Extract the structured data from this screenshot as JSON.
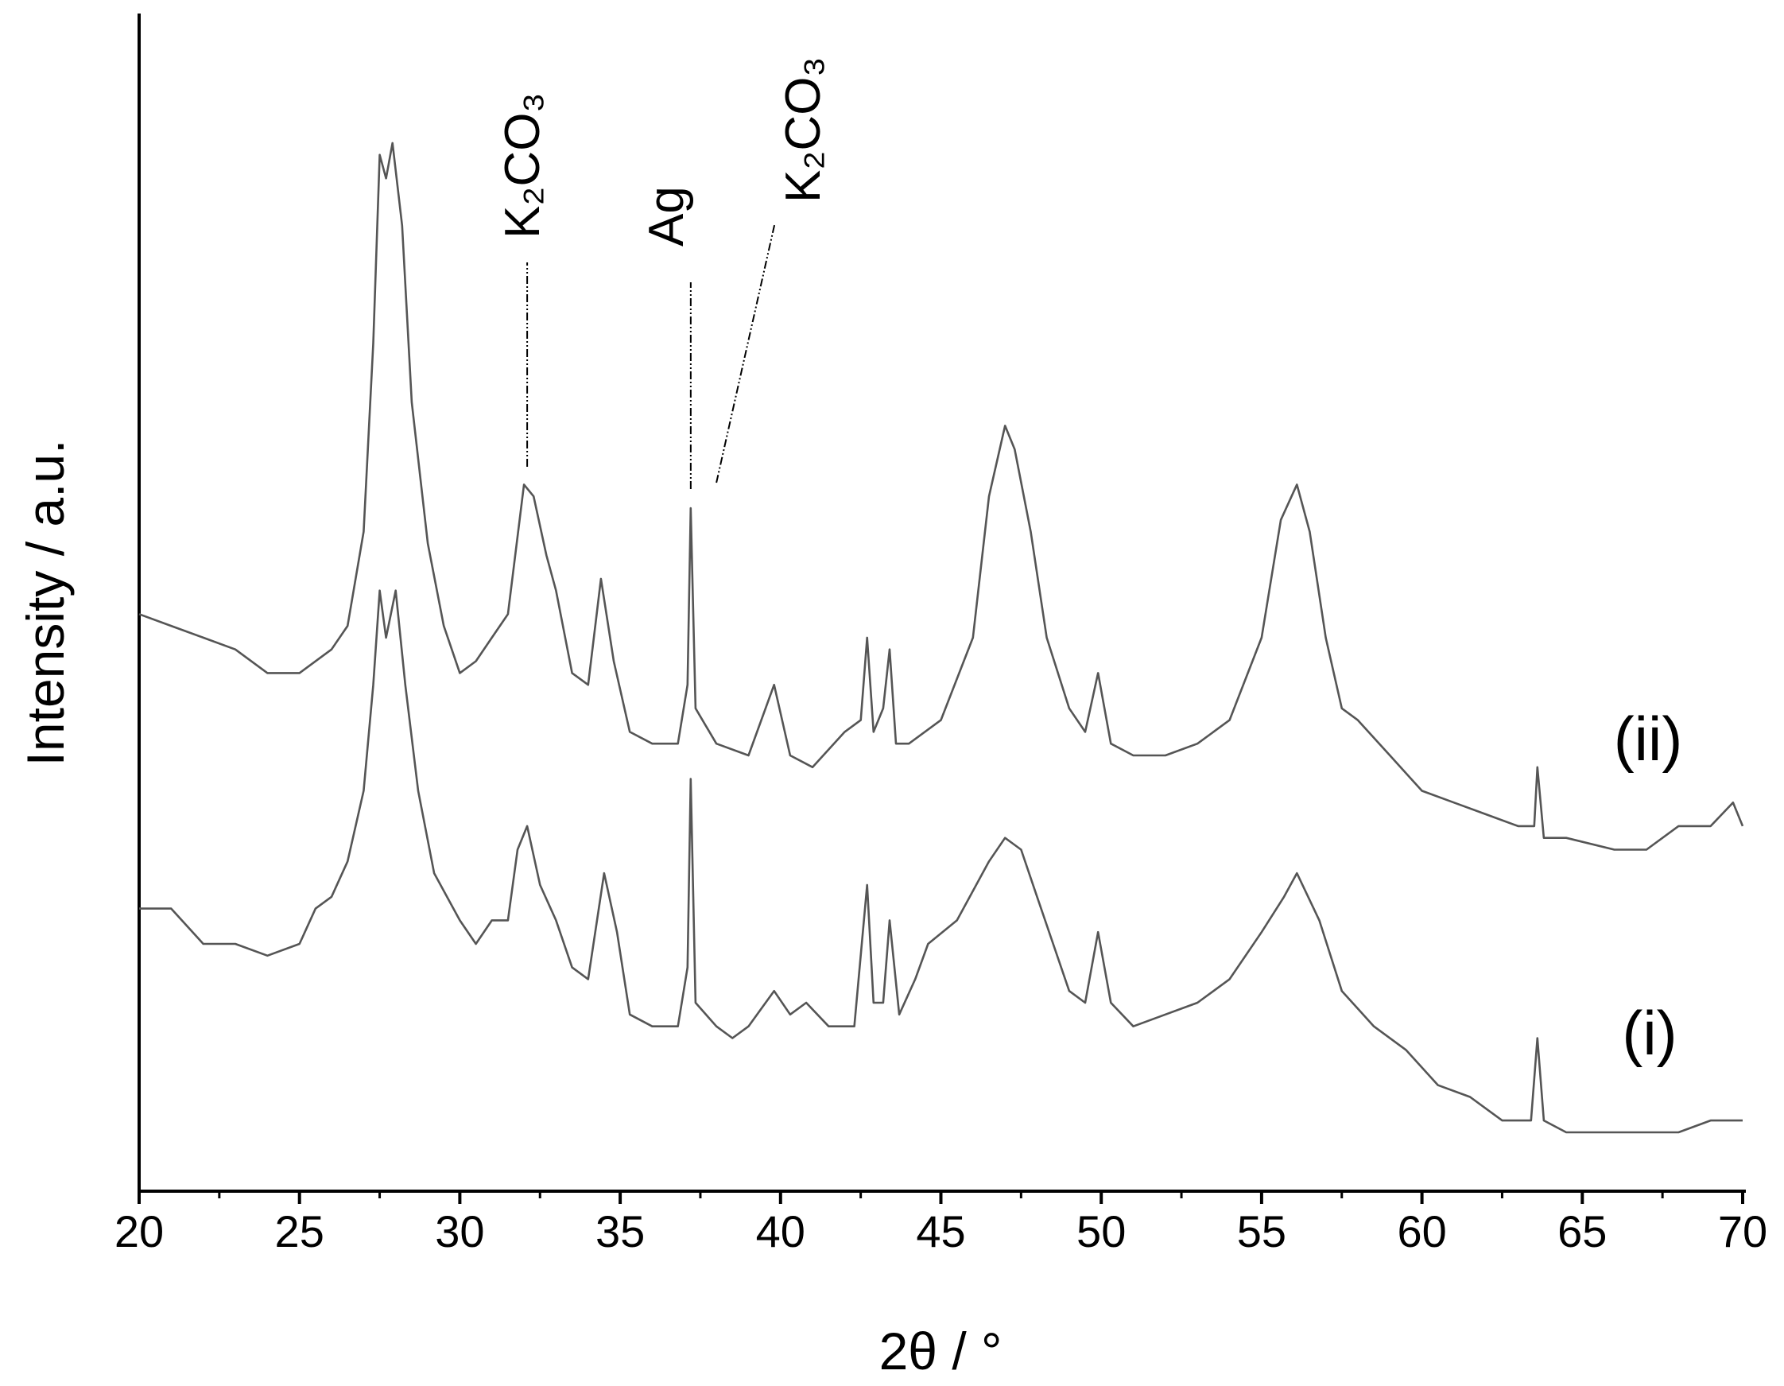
{
  "chart_data": {
    "type": "line",
    "xlabel": "2θ / °",
    "ylabel": "Intensity / a.u.",
    "xlim": [
      20,
      70
    ],
    "xticks": [
      20,
      25,
      30,
      35,
      40,
      45,
      50,
      55,
      60,
      65,
      70
    ],
    "xminorticks": [
      22.5,
      27.5,
      32.5,
      37.5,
      42.5,
      47.5,
      52.5,
      57.5,
      62.5,
      67.5
    ],
    "ylim": [
      0,
      100
    ],
    "series": [
      {
        "name": "(ii)",
        "color": "#555555",
        "x": [
          20,
          21,
          22,
          23,
          24,
          25,
          26,
          26.5,
          27,
          27.3,
          27.5,
          27.7,
          27.9,
          28.2,
          28.5,
          29,
          29.5,
          30,
          30.5,
          31,
          31.5,
          32,
          32.3,
          32.7,
          33,
          33.5,
          34,
          34.4,
          34.8,
          35.3,
          36,
          36.8,
          37.1,
          37.2,
          37.35,
          38,
          39,
          39.8,
          40.3,
          41,
          42,
          42.5,
          42.7,
          42.9,
          43.2,
          43.4,
          43.6,
          44,
          45,
          46,
          46.5,
          47,
          47.3,
          47.8,
          48.3,
          49,
          49.5,
          49.9,
          50.3,
          51,
          52,
          53,
          54,
          55,
          55.6,
          56.1,
          56.5,
          57,
          57.5,
          58,
          59,
          60,
          61,
          62,
          63,
          63.5,
          63.6,
          63.8,
          64.5,
          66,
          67,
          68,
          69,
          69.7,
          70
        ],
        "values": [
          49,
          48,
          47,
          46,
          44,
          44,
          46,
          48,
          56,
          72,
          88,
          86,
          89,
          82,
          67,
          55,
          48,
          44,
          45,
          47,
          49,
          60,
          59,
          54,
          51,
          44,
          43,
          52,
          45,
          39,
          38,
          38,
          43,
          58,
          41,
          38,
          37,
          43,
          37,
          36,
          39,
          40,
          47,
          39,
          41,
          46,
          38,
          38,
          40,
          47,
          59,
          65,
          63,
          56,
          47,
          41,
          39,
          44,
          38,
          37,
          37,
          38,
          40,
          47,
          57,
          60,
          56,
          47,
          41,
          40,
          37,
          34,
          33,
          32,
          31,
          31,
          36,
          30,
          30,
          29,
          29,
          31,
          31,
          33,
          31
        ]
      },
      {
        "name": "(i)",
        "color": "#555555",
        "x": [
          20,
          20.5,
          21,
          22,
          23,
          24,
          25,
          25.5,
          26,
          26.5,
          27,
          27.3,
          27.5,
          27.7,
          28,
          28.3,
          28.7,
          29.2,
          30,
          30.5,
          31,
          31.5,
          31.8,
          32.1,
          32.5,
          33,
          33.5,
          34,
          34.5,
          34.9,
          35.3,
          36,
          36.8,
          37.1,
          37.2,
          37.35,
          38,
          38.5,
          39,
          39.8,
          40.3,
          40.8,
          41.5,
          42.3,
          42.7,
          42.9,
          43.2,
          43.4,
          43.7,
          44.2,
          44.6,
          45.5,
          46.5,
          47,
          47.5,
          48,
          48.5,
          49,
          49.5,
          49.9,
          50.3,
          51,
          52,
          53,
          54,
          55,
          55.7,
          56.1,
          56.8,
          57.5,
          58.5,
          59.5,
          60.5,
          61.5,
          62.5,
          63.4,
          63.6,
          63.8,
          64.5,
          66,
          67,
          68,
          69,
          70
        ],
        "values": [
          24,
          24,
          24,
          21,
          21,
          20,
          21,
          24,
          25,
          28,
          34,
          43,
          51,
          47,
          51,
          43,
          34,
          27,
          23,
          21,
          23,
          23,
          29,
          31,
          26,
          23,
          19,
          18,
          27,
          22,
          15,
          14,
          14,
          19,
          35,
          16,
          14,
          13,
          14,
          17,
          15,
          16,
          14,
          14,
          26,
          16,
          16,
          23,
          15,
          18,
          21,
          23,
          28,
          30,
          29,
          25,
          21,
          17,
          16,
          22,
          16,
          14,
          15,
          16,
          18,
          22,
          25,
          27,
          23,
          17,
          14,
          12,
          9,
          8,
          6,
          6,
          13,
          6,
          5,
          5,
          5,
          5,
          6,
          6
        ]
      }
    ],
    "annotations": [
      {
        "text": "K₂CO₃",
        "x": 32.1
      },
      {
        "text": "Ag",
        "x": 37.2
      },
      {
        "text": "K₂CO₃",
        "x": 38
      }
    ]
  }
}
